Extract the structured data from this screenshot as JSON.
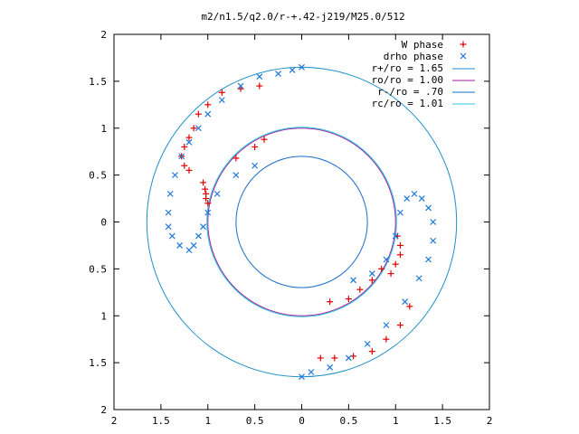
{
  "chart_data": {
    "type": "scatter",
    "title": "m2/n1.5/q2.0/r-+.42-j219/M25.0/512",
    "xlabel": "",
    "ylabel": "",
    "xlim": [
      2,
      -2
    ],
    "ylim": [
      -2,
      2
    ],
    "x_ticks": [
      "2",
      "1.5",
      "1",
      "0.5",
      "0",
      "0.5",
      "1",
      "1.5",
      "2"
    ],
    "y_ticks": [
      "2",
      "1.5",
      "1",
      "0.5",
      "0",
      "0.5",
      "1",
      "1.5",
      "2"
    ],
    "legend_position": "top-right",
    "grid": false,
    "circles": [
      {
        "name": "r+/ro = 1.65",
        "r": 1.65,
        "color": "#1e90c8"
      },
      {
        "name": "ro/ro = 1.00",
        "r": 1.0,
        "color": "#a020a0"
      },
      {
        "name": "r-/ro = .70",
        "r": 0.7,
        "color": "#1e6ec8"
      },
      {
        "name": "rc/ro = 1.01",
        "r": 1.01,
        "color": "#28c8e0"
      }
    ],
    "series": [
      {
        "name": "W phase",
        "marker": "+",
        "color": "#e00000",
        "points": [
          [
            -0.45,
            1.45
          ],
          [
            -0.65,
            1.42
          ],
          [
            -0.85,
            1.38
          ],
          [
            -1.0,
            1.25
          ],
          [
            -1.1,
            1.15
          ],
          [
            -1.15,
            1.0
          ],
          [
            -1.2,
            0.9
          ],
          [
            -1.25,
            0.8
          ],
          [
            -1.28,
            0.7
          ],
          [
            -1.25,
            0.6
          ],
          [
            -1.2,
            0.55
          ],
          [
            -1.05,
            0.42
          ],
          [
            -1.03,
            0.35
          ],
          [
            -1.02,
            0.3
          ],
          [
            -1.02,
            0.25
          ],
          [
            -1.0,
            0.2
          ],
          [
            -0.4,
            0.88
          ],
          [
            -0.5,
            0.8
          ],
          [
            -0.7,
            0.68
          ],
          [
            0.95,
            -0.55
          ],
          [
            1.0,
            -0.45
          ],
          [
            1.05,
            -0.35
          ],
          [
            1.05,
            -0.25
          ],
          [
            1.02,
            -0.15
          ],
          [
            0.3,
            -0.85
          ],
          [
            0.5,
            -0.82
          ],
          [
            0.62,
            -0.72
          ],
          [
            0.75,
            -0.62
          ],
          [
            0.85,
            -0.5
          ],
          [
            0.2,
            -1.45
          ],
          [
            0.35,
            -1.45
          ],
          [
            0.55,
            -1.43
          ],
          [
            0.75,
            -1.38
          ],
          [
            0.9,
            -1.25
          ],
          [
            1.05,
            -1.1
          ],
          [
            1.15,
            -0.9
          ]
        ]
      },
      {
        "name": "drho phase",
        "marker": "x",
        "color": "#1e78d8",
        "points": [
          [
            0.0,
            1.65
          ],
          [
            -0.1,
            1.62
          ],
          [
            -0.25,
            1.58
          ],
          [
            -0.45,
            1.55
          ],
          [
            -0.65,
            1.45
          ],
          [
            -0.85,
            1.3
          ],
          [
            -1.0,
            1.15
          ],
          [
            -1.1,
            1.0
          ],
          [
            -1.2,
            0.85
          ],
          [
            -1.28,
            0.7
          ],
          [
            -1.35,
            0.5
          ],
          [
            -1.4,
            0.3
          ],
          [
            -1.42,
            0.1
          ],
          [
            -1.42,
            -0.05
          ],
          [
            -1.38,
            -0.15
          ],
          [
            -1.3,
            -0.25
          ],
          [
            -1.2,
            -0.3
          ],
          [
            -1.15,
            -0.25
          ],
          [
            -1.1,
            -0.15
          ],
          [
            -1.05,
            -0.05
          ],
          [
            -1.0,
            0.1
          ],
          [
            -0.9,
            0.3
          ],
          [
            -0.7,
            0.5
          ],
          [
            -0.5,
            0.6
          ],
          [
            0.0,
            -1.65
          ],
          [
            0.1,
            -1.6
          ],
          [
            0.3,
            -1.55
          ],
          [
            0.5,
            -1.45
          ],
          [
            0.7,
            -1.3
          ],
          [
            0.9,
            -1.1
          ],
          [
            1.1,
            -0.85
          ],
          [
            1.25,
            -0.6
          ],
          [
            1.35,
            -0.4
          ],
          [
            1.4,
            -0.2
          ],
          [
            1.4,
            0.0
          ],
          [
            1.35,
            0.15
          ],
          [
            1.28,
            0.25
          ],
          [
            1.2,
            0.3
          ],
          [
            1.12,
            0.25
          ],
          [
            1.05,
            0.1
          ],
          [
            1.0,
            -0.15
          ],
          [
            0.9,
            -0.4
          ],
          [
            0.75,
            -0.55
          ],
          [
            0.55,
            -0.62
          ]
        ]
      }
    ]
  }
}
